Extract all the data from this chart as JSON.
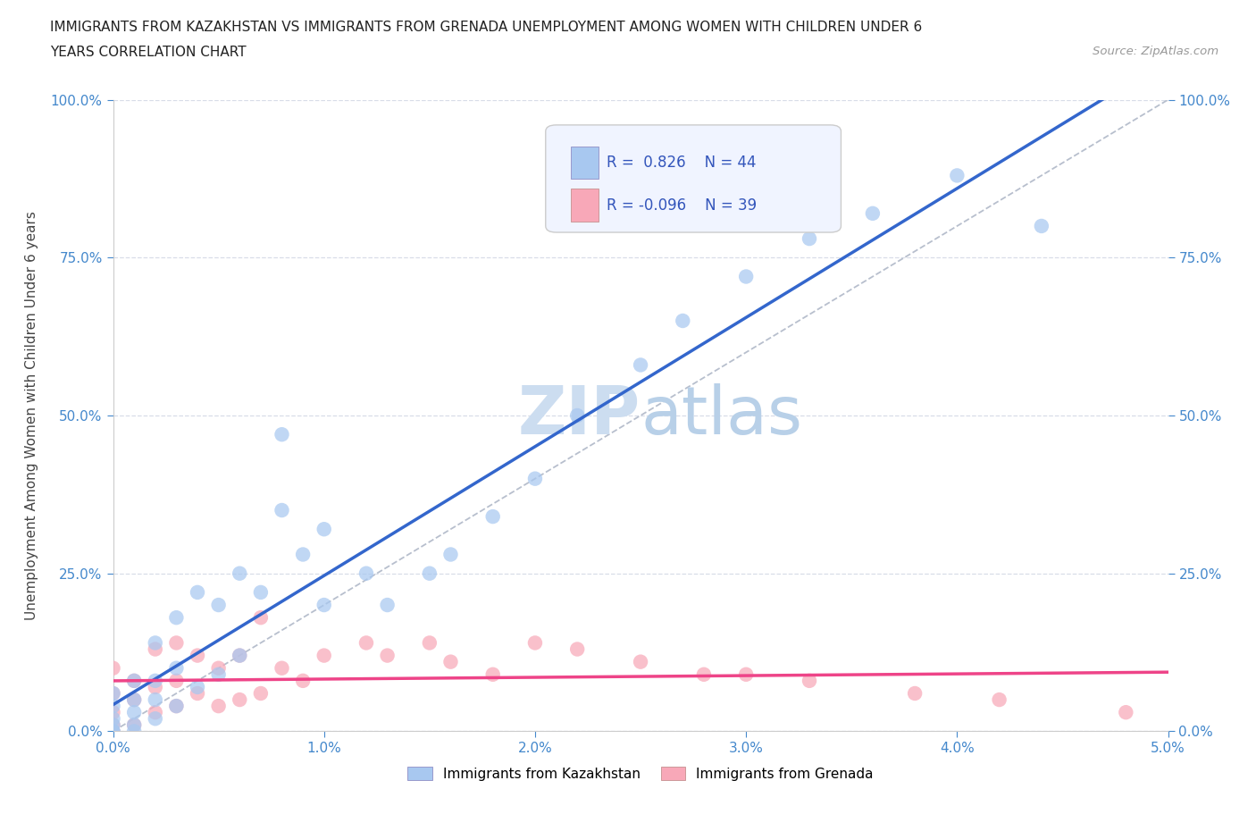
{
  "title_line1": "IMMIGRANTS FROM KAZAKHSTAN VS IMMIGRANTS FROM GRENADA UNEMPLOYMENT AMONG WOMEN WITH CHILDREN UNDER 6",
  "title_line2": "YEARS CORRELATION CHART",
  "source_text": "Source: ZipAtlas.com",
  "ylabel": "Unemployment Among Women with Children Under 6 years",
  "xlim": [
    0.0,
    0.05
  ],
  "ylim": [
    0.0,
    1.0
  ],
  "kaz_R": 0.826,
  "kaz_N": 44,
  "gren_R": -0.096,
  "gren_N": 39,
  "kaz_color": "#a8c8f0",
  "gren_color": "#f8a8b8",
  "kaz_line_color": "#3366cc",
  "gren_line_color": "#ee4488",
  "diag_line_color": "#b0b8c8",
  "background_color": "#ffffff",
  "grid_color": "#d8dde8",
  "watermark_color": "#ccddf0",
  "legend_box_color": "#f0f4ff",
  "stat_color": "#3355bb",
  "tick_color": "#4488cc",
  "kaz_scatter_x": [
    0.0,
    0.0,
    0.0,
    0.0,
    0.0,
    0.0,
    0.001,
    0.001,
    0.001,
    0.001,
    0.001,
    0.002,
    0.002,
    0.002,
    0.002,
    0.003,
    0.003,
    0.003,
    0.004,
    0.004,
    0.005,
    0.005,
    0.006,
    0.006,
    0.007,
    0.008,
    0.008,
    0.009,
    0.01,
    0.01,
    0.012,
    0.013,
    0.015,
    0.016,
    0.018,
    0.02,
    0.022,
    0.025,
    0.027,
    0.03,
    0.033,
    0.036,
    0.04,
    0.044
  ],
  "kaz_scatter_y": [
    0.0,
    0.0,
    0.01,
    0.02,
    0.04,
    0.06,
    0.0,
    0.01,
    0.03,
    0.05,
    0.08,
    0.02,
    0.05,
    0.08,
    0.14,
    0.04,
    0.1,
    0.18,
    0.07,
    0.22,
    0.09,
    0.2,
    0.12,
    0.25,
    0.22,
    0.35,
    0.47,
    0.28,
    0.2,
    0.32,
    0.25,
    0.2,
    0.25,
    0.28,
    0.34,
    0.4,
    0.5,
    0.58,
    0.65,
    0.72,
    0.78,
    0.82,
    0.88,
    0.8
  ],
  "gren_scatter_x": [
    0.0,
    0.0,
    0.0,
    0.0,
    0.0,
    0.001,
    0.001,
    0.001,
    0.002,
    0.002,
    0.002,
    0.003,
    0.003,
    0.003,
    0.004,
    0.004,
    0.005,
    0.005,
    0.006,
    0.006,
    0.007,
    0.007,
    0.008,
    0.009,
    0.01,
    0.012,
    0.013,
    0.015,
    0.016,
    0.018,
    0.02,
    0.022,
    0.025,
    0.028,
    0.03,
    0.033,
    0.038,
    0.042,
    0.048
  ],
  "gren_scatter_y": [
    0.0,
    0.01,
    0.03,
    0.06,
    0.1,
    0.01,
    0.05,
    0.08,
    0.03,
    0.07,
    0.13,
    0.04,
    0.08,
    0.14,
    0.06,
    0.12,
    0.04,
    0.1,
    0.05,
    0.12,
    0.06,
    0.18,
    0.1,
    0.08,
    0.12,
    0.14,
    0.12,
    0.14,
    0.11,
    0.09,
    0.14,
    0.13,
    0.11,
    0.09,
    0.09,
    0.08,
    0.06,
    0.05,
    0.03
  ]
}
